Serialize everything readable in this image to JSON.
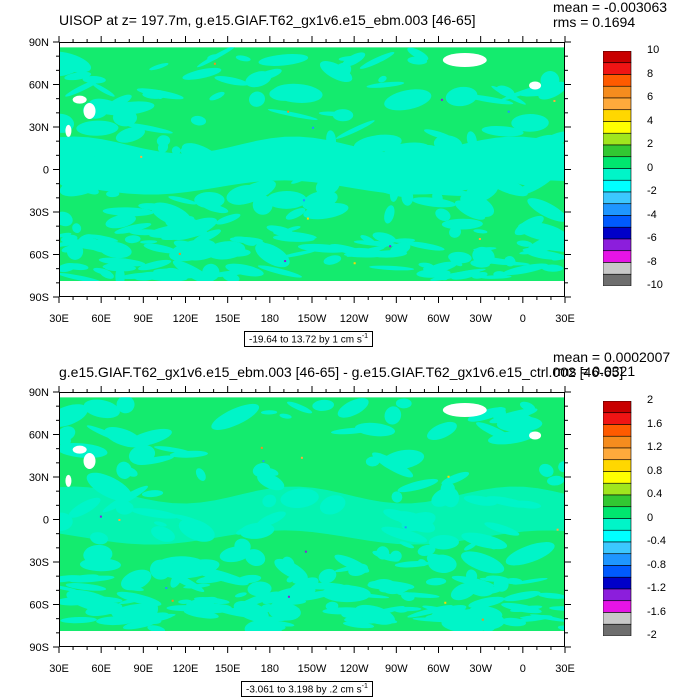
{
  "chart_data": [
    {
      "type": "heatmap",
      "title": "UISOP at z= 197.7m, g.e15.GIAF.T62_gx1v6.e15_ebm.003 [46-65]",
      "stats": {
        "mean": "mean = -0.003063",
        "rms": "rms = 0.1694"
      },
      "range_label": "-19.64 to 13.72 by 1 cm s",
      "range_unit_exp": "-1",
      "x_ticks": [
        "30E",
        "60E",
        "90E",
        "120E",
        "150E",
        "180",
        "150W",
        "120W",
        "90W",
        "60W",
        "30W",
        "0",
        "30E"
      ],
      "y_ticks": [
        "90N",
        "60N",
        "30N",
        "0",
        "30S",
        "60S",
        "90S"
      ],
      "xlim_deg_east": [
        30,
        390
      ],
      "ylim_deg_north": [
        -90,
        90
      ],
      "colorbar": {
        "labels": [
          "10",
          "8",
          "6",
          "4",
          "2",
          "0",
          "-2",
          "-4",
          "-6",
          "-8",
          "-10"
        ],
        "colors": [
          "#c80000",
          "#f01414",
          "#ff5a00",
          "#f58c1e",
          "#ffaa3c",
          "#ffd700",
          "#ffff00",
          "#a0e61e",
          "#32c832",
          "#00e66e",
          "#00f5c8",
          "#00ffff",
          "#3cc8ff",
          "#1e96ff",
          "#005aff",
          "#0000c8",
          "#8c1edc",
          "#e614e6",
          "#c8c8c8",
          "#6e6e6e"
        ]
      },
      "field_colors": {
        "background": "#14eb6e",
        "pattern": "#00f5c8",
        "land": "#ffffff"
      }
    },
    {
      "type": "heatmap",
      "title": "g.e15.GIAF.T62_gx1v6.e15_ebm.003 [46-65] - g.e15.GIAF.T62_gx1v6.e15_ctrl.002 [46-65]",
      "stats": {
        "mean": "mean = 0.0002007",
        "rms": "rms = 0.0321"
      },
      "range_label": "-3.061 to 3.198 by .2 cm s",
      "range_unit_exp": "-1",
      "x_ticks": [
        "30E",
        "60E",
        "90E",
        "120E",
        "150E",
        "180",
        "150W",
        "120W",
        "90W",
        "60W",
        "30W",
        "0",
        "30E"
      ],
      "y_ticks": [
        "90N",
        "60N",
        "30N",
        "0",
        "30S",
        "60S",
        "90S"
      ],
      "xlim_deg_east": [
        30,
        390
      ],
      "ylim_deg_north": [
        -90,
        90
      ],
      "colorbar": {
        "labels": [
          "2",
          "1.6",
          "1.2",
          "0.8",
          "0.4",
          "0",
          "-0.4",
          "-0.8",
          "-1.2",
          "-1.6",
          "-2"
        ],
        "colors": [
          "#c80000",
          "#f01414",
          "#ff5a00",
          "#f58c1e",
          "#ffaa3c",
          "#ffd700",
          "#ffff00",
          "#a0e61e",
          "#32c832",
          "#00e66e",
          "#00f5c8",
          "#00ffff",
          "#3cc8ff",
          "#1e96ff",
          "#005aff",
          "#0000c8",
          "#8c1edc",
          "#e614e6",
          "#c8c8c8",
          "#6e6e6e"
        ]
      },
      "field_colors": {
        "background": "#14eb6e",
        "pattern": "#00f5c8",
        "land": "#ffffff"
      }
    }
  ]
}
